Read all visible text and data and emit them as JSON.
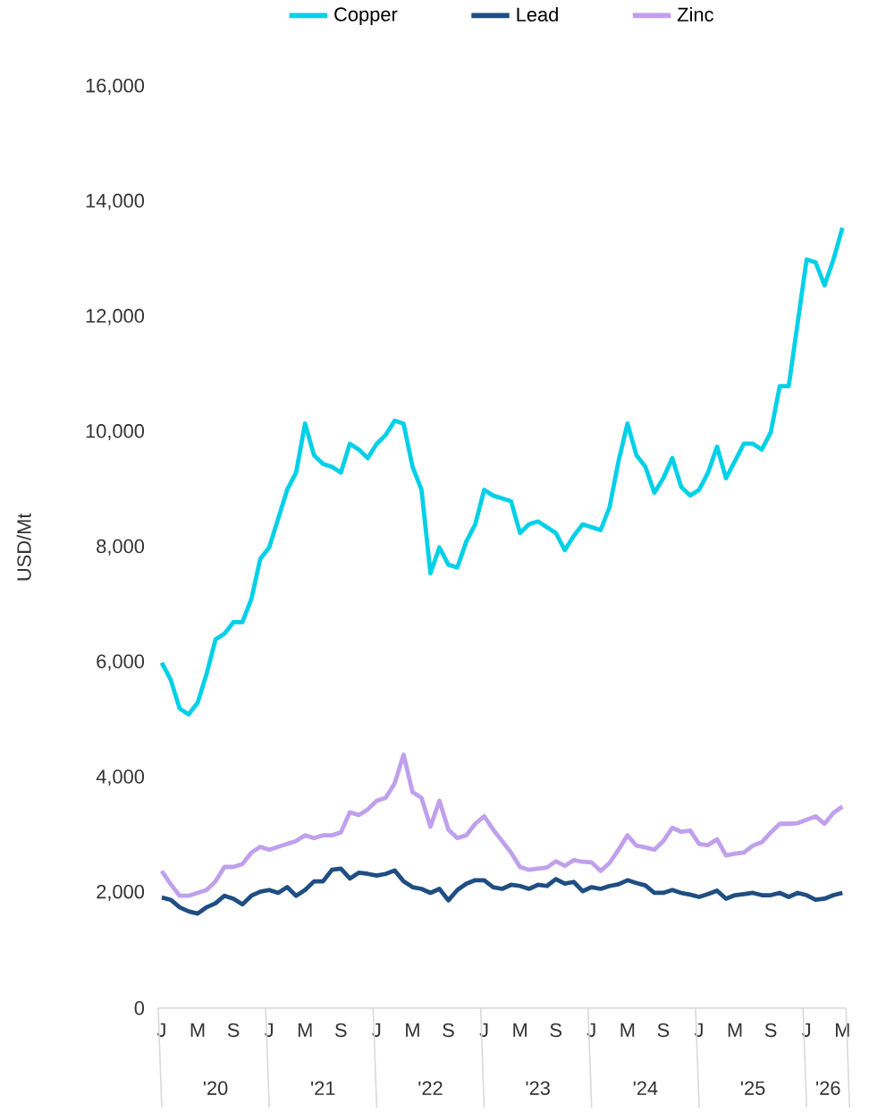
{
  "chart_data": {
    "type": "line",
    "ylabel": "USD/Mt",
    "categories": [
      "J",
      null,
      null,
      null,
      "M",
      null,
      null,
      null,
      "S",
      null,
      null,
      null,
      "J",
      null,
      null,
      null,
      "M",
      null,
      null,
      null,
      "S",
      null,
      null,
      null,
      "J",
      null,
      null,
      null,
      "M",
      null,
      null,
      null,
      "S",
      null,
      null,
      null,
      "J",
      null,
      null,
      null,
      "M",
      null,
      null,
      null,
      "S",
      null,
      null,
      null,
      "J",
      null,
      null,
      null,
      "M",
      null,
      null,
      null,
      "S",
      null,
      null,
      null,
      "J",
      null,
      null,
      null,
      "M",
      null,
      null,
      null,
      "S",
      null,
      null,
      null,
      "J",
      null,
      null,
      null,
      "M"
    ],
    "annotations": [
      "'20",
      "'21",
      "'22",
      "'23",
      "'24",
      "'25",
      "'26"
    ],
    "series": [
      {
        "name": "Copper",
        "color": "#00d0e8",
        "values": [
          6000,
          5700,
          5200,
          5100,
          5300,
          5800,
          6400,
          6500,
          6700,
          6700,
          7100,
          7800,
          8000,
          8500,
          9000,
          9300,
          10150,
          9600,
          9450,
          9400,
          9300,
          9800,
          9700,
          9550,
          9800,
          9950,
          10200,
          10150,
          9400,
          9000,
          7550,
          8000,
          7700,
          7650,
          8100,
          8400,
          9000,
          8900,
          8850,
          8800,
          8250,
          8400,
          8450,
          8350,
          8250,
          7950,
          8200,
          8400,
          8350,
          8300,
          8700,
          9500,
          10150,
          9600,
          9400,
          8950,
          9200,
          9550,
          9050,
          8900,
          9000,
          9300,
          9750,
          9200,
          9500,
          9800,
          9800,
          9700,
          10000,
          10800,
          10800,
          11900,
          13000,
          12950,
          12550,
          13000,
          13550
        ]
      },
      {
        "name": "Lead",
        "color": "#1f4e82",
        "values": [
          1920,
          1880,
          1750,
          1680,
          1640,
          1750,
          1820,
          1950,
          1900,
          1800,
          1950,
          2020,
          2050,
          2000,
          2100,
          1950,
          2050,
          2200,
          2200,
          2400,
          2420,
          2250,
          2350,
          2330,
          2300,
          2330,
          2390,
          2200,
          2100,
          2070,
          2000,
          2070,
          1870,
          2050,
          2160,
          2220,
          2220,
          2100,
          2070,
          2140,
          2120,
          2070,
          2140,
          2120,
          2240,
          2160,
          2190,
          2030,
          2100,
          2070,
          2120,
          2150,
          2220,
          2170,
          2130,
          2000,
          2000,
          2050,
          2000,
          1970,
          1930,
          1980,
          2040,
          1900,
          1960,
          1980,
          2000,
          1960,
          1960,
          2000,
          1930,
          2000,
          1960,
          1880,
          1900,
          1960,
          2000
        ]
      },
      {
        "name": "Zinc",
        "color": "#c0a0ec",
        "values": [
          2380,
          2150,
          1950,
          1950,
          2000,
          2050,
          2200,
          2450,
          2450,
          2500,
          2700,
          2800,
          2750,
          2800,
          2850,
          2900,
          3000,
          2950,
          3000,
          3000,
          3050,
          3400,
          3350,
          3450,
          3600,
          3650,
          3900,
          4400,
          3750,
          3650,
          3150,
          3600,
          3100,
          2950,
          3000,
          3200,
          3330,
          3100,
          2900,
          2700,
          2450,
          2400,
          2420,
          2440,
          2550,
          2470,
          2570,
          2540,
          2530,
          2380,
          2520,
          2750,
          3000,
          2820,
          2790,
          2750,
          2900,
          3130,
          3060,
          3080,
          2850,
          2830,
          2930,
          2650,
          2680,
          2700,
          2820,
          2880,
          3050,
          3200,
          3200,
          3210,
          3270,
          3330,
          3200,
          3390,
          3500
        ]
      }
    ],
    "ylim": [
      0,
      16000
    ],
    "yticks": [
      0,
      {
        "value": 2000,
        "label": "2,000"
      },
      {
        "value": 4000,
        "label": "4,000"
      },
      {
        "value": 6000,
        "label": "6,000"
      },
      {
        "value": 8000,
        "label": "8,000"
      },
      {
        "value": 10000,
        "label": "10,000"
      },
      {
        "value": 12000,
        "label": "12,000"
      },
      {
        "value": 14000,
        "label": "14,000"
      },
      {
        "value": 16000,
        "label": "16,000"
      }
    ],
    "legend": "top",
    "marker": "none",
    "line_style": "solid"
  }
}
